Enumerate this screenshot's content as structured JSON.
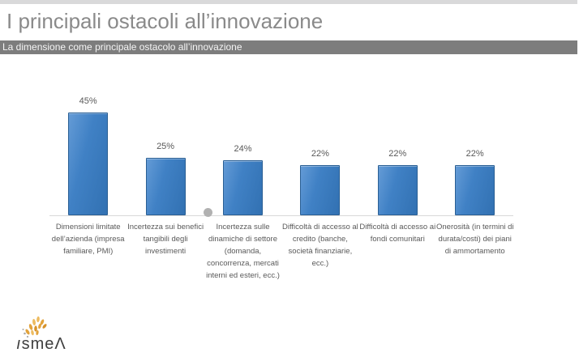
{
  "page": {
    "title": "I principali ostacoli all’innovazione",
    "subtitle": "La dimensione come principale ostacolo all’innovazione"
  },
  "chart_data": {
    "type": "bar",
    "title": "La dimensione come principale ostacolo all'innovazione",
    "categories": [
      "Dimensioni limitate\ndell’azienda (impresa\nfamiliare, PMI)",
      "Incertezza sui benefici\ntangibili degli\ninvestimenti",
      "Incertezza sulle\ndinamiche di settore\n(domanda,\nconcorrenza, mercati\ninterni ed esteri, ecc.)",
      "Difficoltà di accesso al\ncredito (banche,\nsocietà finanziarie,\necc.)",
      "Difficoltà di accesso ai\nfondi comunitari",
      "Onerosità (in termini di\ndurata/costi) dei piani\ndi ammortamento"
    ],
    "values": [
      45,
      25,
      24,
      22,
      22,
      22
    ],
    "value_labels": [
      "45%",
      "25%",
      "24%",
      "22%",
      "22%",
      "22%"
    ],
    "unit": "percent",
    "ylim": [
      0,
      50
    ],
    "xlabel": "",
    "ylabel": "",
    "gridlines": false,
    "legend": false,
    "axis_lines": "baseline-only"
  },
  "colors": {
    "bar_fill": "#4081c5",
    "bar_fill_light": "#649bd6",
    "bar_fill_dark": "#3271b2",
    "bar_border": "#2a5f94",
    "title_gray": "#8a8a8a",
    "subtitle_bg": "#7d7d7d",
    "subtitle_text": "#f5f5f5",
    "label_gray": "#595959",
    "baseline_gray": "#d9d9d9",
    "top_strip_gray": "#d9d9da",
    "dot_gray": "#b1b1b1",
    "logo_gold": "#e2a33c",
    "logo_gold_light": "#edbb60",
    "logo_text": "#3f3f3f"
  },
  "logo": {
    "brand": "ismea",
    "display_first": "ı",
    "display_mid": "sme",
    "display_last": "Λ"
  }
}
